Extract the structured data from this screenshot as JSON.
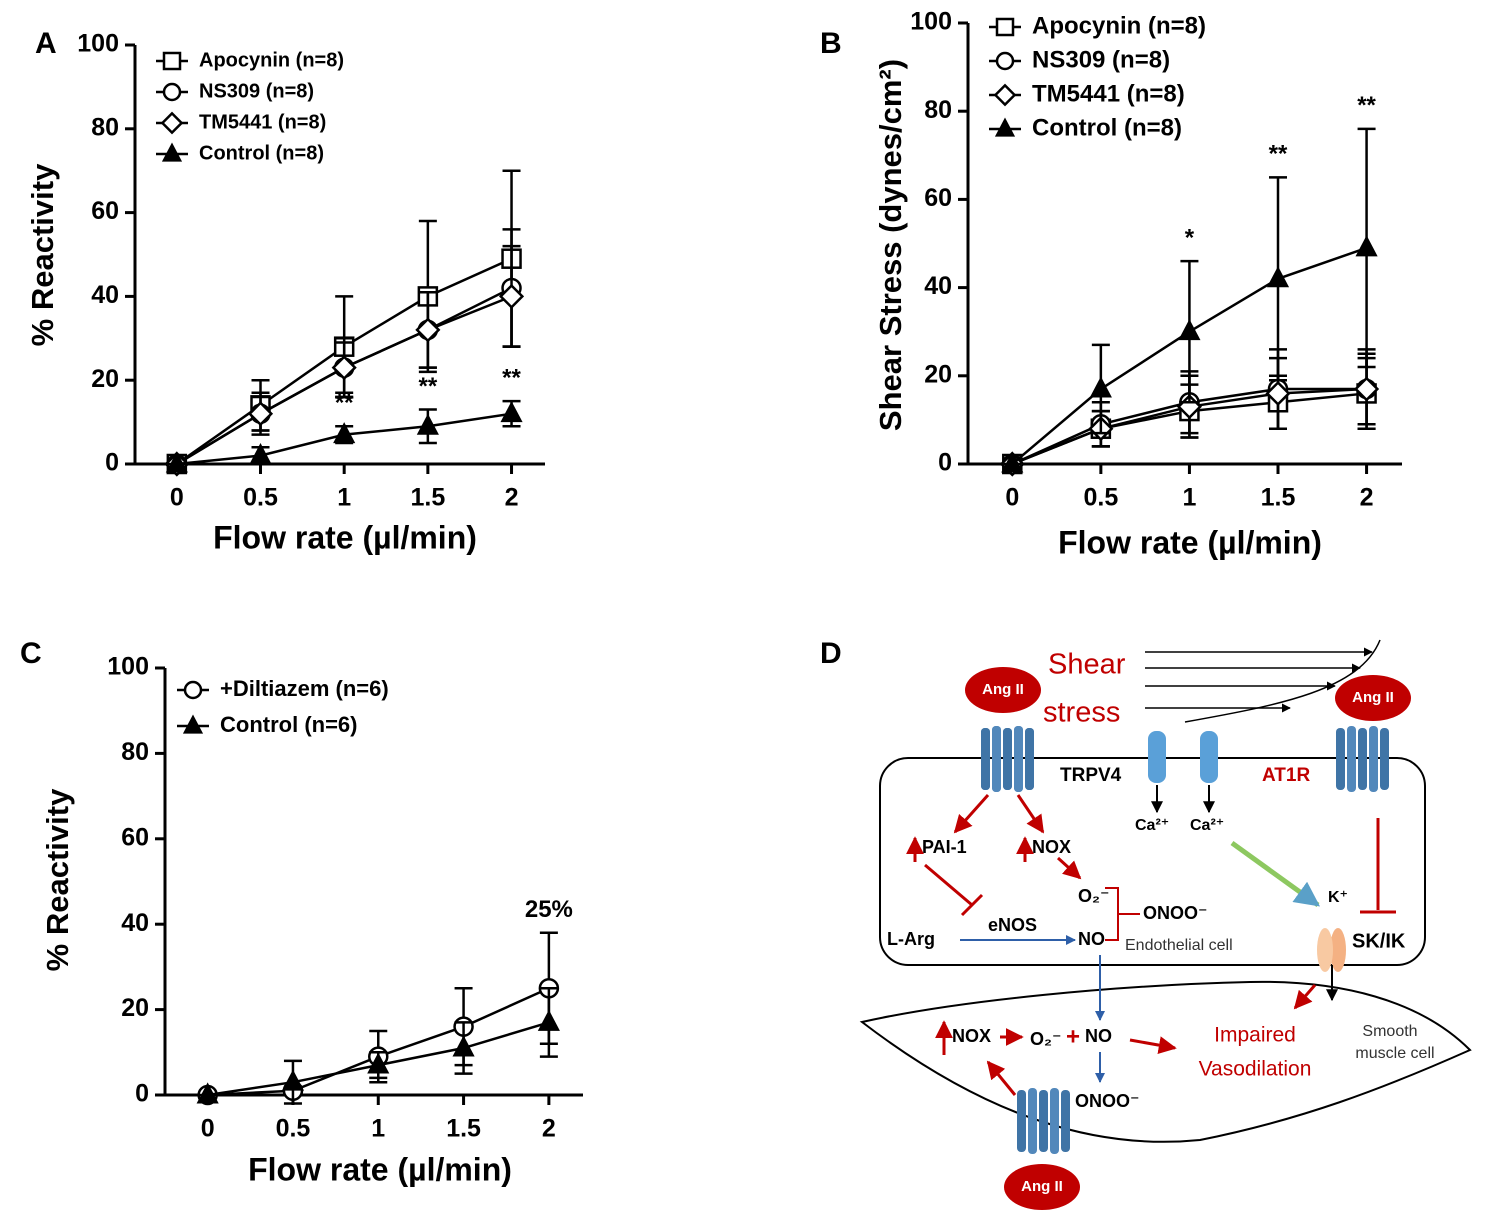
{
  "chart_data": [
    {
      "type": "line",
      "panel": "A",
      "ylabel": "% Reactivity",
      "xlabel": "Flow rate (µl/min)",
      "x": [
        0,
        0.5,
        1,
        1.5,
        2
      ],
      "xlim": [
        -0.25,
        2.2
      ],
      "xticks": [
        0,
        0.5,
        1,
        1.5,
        2
      ],
      "ylim": [
        0,
        100
      ],
      "yticks": [
        0,
        20,
        40,
        60,
        80,
        100
      ],
      "legend": "upper left",
      "series": [
        {
          "name": "Apocynin (n=8)",
          "marker": "square",
          "color": "#000000",
          "values": [
            0,
            14,
            28,
            40,
            49
          ],
          "errors": [
            0,
            6,
            12,
            18,
            21
          ]
        },
        {
          "name": "NS309 (n=8)",
          "marker": "circle",
          "color": "#000000",
          "values": [
            0,
            12,
            23,
            32,
            42
          ],
          "errors": [
            0,
            5,
            7,
            9,
            14
          ]
        },
        {
          "name": "TM5441 (n=8)",
          "marker": "diamond",
          "color": "#000000",
          "values": [
            0,
            12,
            23,
            32,
            40
          ],
          "errors": [
            0,
            4,
            6,
            9,
            12
          ]
        },
        {
          "name": "Control (n=8)",
          "marker": "triangle",
          "color": "#000000",
          "values": [
            0,
            2,
            7,
            9,
            12
          ],
          "errors": [
            0,
            2,
            2,
            4,
            3
          ]
        }
      ],
      "annotations": [
        {
          "text": "**",
          "x": 1,
          "series": 3
        },
        {
          "text": "**",
          "x": 1.5,
          "series": 3
        },
        {
          "text": "**",
          "x": 2,
          "series": 3
        }
      ]
    },
    {
      "type": "line",
      "panel": "B",
      "ylabel": "Shear Stress (dynes/cm²)",
      "xlabel": "Flow rate (µl/min)",
      "x": [
        0,
        0.5,
        1,
        1.5,
        2
      ],
      "xlim": [
        -0.25,
        2.2
      ],
      "xticks": [
        0,
        0.5,
        1,
        1.5,
        2
      ],
      "ylim": [
        0,
        100
      ],
      "yticks": [
        0,
        20,
        40,
        60,
        80,
        100
      ],
      "legend": "upper left",
      "series": [
        {
          "name": "Apocynin (n=8)",
          "marker": "square",
          "color": "#000000",
          "values": [
            0,
            8,
            12,
            14,
            16
          ],
          "errors": [
            0,
            4,
            6,
            6,
            8
          ]
        },
        {
          "name": "NS309 (n=8)",
          "marker": "circle",
          "color": "#000000",
          "values": [
            0,
            9,
            14,
            17,
            17
          ],
          "errors": [
            0,
            5,
            7,
            9,
            9
          ]
        },
        {
          "name": "TM5441 (n=8)",
          "marker": "diamond",
          "color": "#000000",
          "values": [
            0,
            8,
            13,
            16,
            17
          ],
          "errors": [
            0,
            4,
            7,
            8,
            8
          ]
        },
        {
          "name": "Control (n=8)",
          "marker": "triangle",
          "color": "#000000",
          "values": [
            0,
            17,
            30,
            42,
            49
          ],
          "errors": [
            0,
            10,
            16,
            23,
            27
          ]
        }
      ],
      "annotations": [
        {
          "text": "*",
          "x": 1,
          "series": 3
        },
        {
          "text": "**",
          "x": 1.5,
          "series": 3
        },
        {
          "text": "**",
          "x": 2,
          "series": 3
        }
      ]
    },
    {
      "type": "line",
      "panel": "C",
      "ylabel": "% Reactivity",
      "xlabel": "Flow rate (µl/min)",
      "x": [
        0,
        0.5,
        1,
        1.5,
        2
      ],
      "xlim": [
        -0.25,
        2.2
      ],
      "xticks": [
        0,
        0.5,
        1,
        1.5,
        2
      ],
      "ylim": [
        0,
        100
      ],
      "yticks": [
        0,
        20,
        40,
        60,
        80,
        100
      ],
      "legend": "upper left",
      "series": [
        {
          "name": "+Diltiazem (n=6)",
          "marker": "circle",
          "color": "#000000",
          "values": [
            0,
            1,
            9,
            16,
            25
          ],
          "errors": [
            0,
            1,
            6,
            9,
            13
          ]
        },
        {
          "name": "Control (n=6)",
          "marker": "triangle",
          "color": "#000000",
          "values": [
            0,
            3,
            7,
            11,
            17
          ],
          "errors": [
            0,
            5,
            3,
            6,
            8
          ]
        }
      ],
      "annotations": [
        {
          "text": "25%",
          "x": 2,
          "series": 0
        }
      ]
    }
  ],
  "diagram": {
    "panel": "D",
    "shear": "Shear",
    "stress": "stress",
    "ang_top_left": "Ang II",
    "ang_top_right": "Ang II",
    "ang_bottom": "Ang II",
    "trpv4": "TRPV4",
    "at1r": "AT1R",
    "pai1": "PAI-1",
    "nox": "NOX",
    "ca_left": "Ca²⁺",
    "ca_right": "Ca²⁺",
    "o2": "O₂⁻",
    "onoo": "ONOO⁻",
    "larg": "L-Arg",
    "enos": "eNOS",
    "no": "NO",
    "endothelial": "Endothelial cell",
    "k": "K⁺",
    "skik": "SK/IK",
    "nox_smc": "NOX",
    "o2_smc": "O₂⁻",
    "plus": "+",
    "no_smc": "NO",
    "onoo_smc": "ONOO⁻",
    "impaired": "Impaired",
    "vasodilation": "Vasodilation",
    "smooth": "Smooth",
    "muscle": "muscle cell"
  }
}
